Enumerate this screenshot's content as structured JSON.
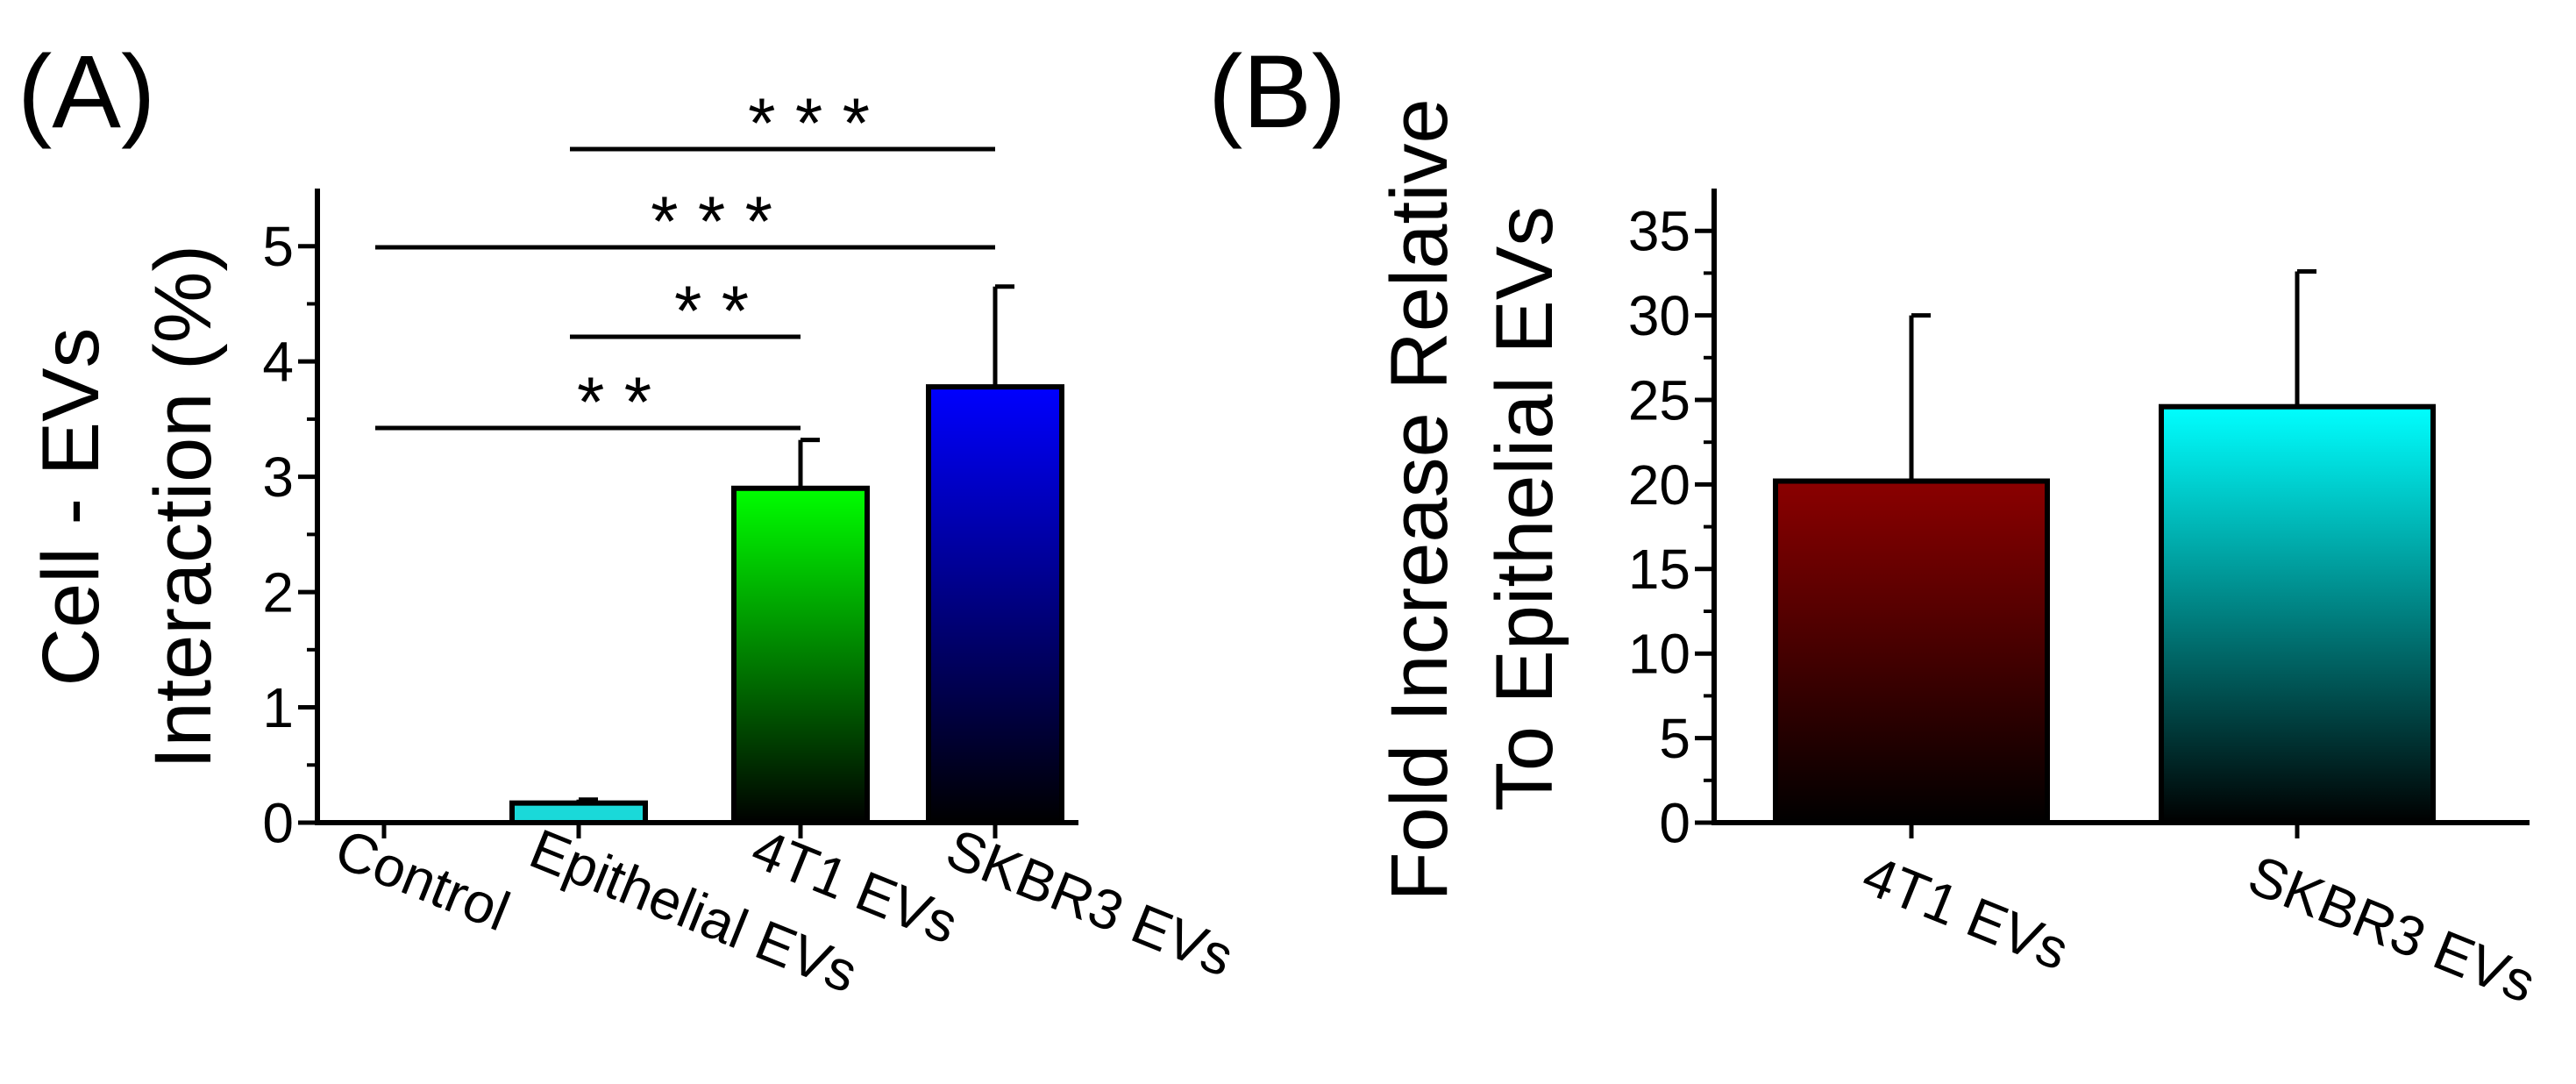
{
  "chart_data": [
    {
      "panel_label": "(A)",
      "type": "bar",
      "title": "",
      "ylabel_lines": [
        "Cell - EVs",
        "Interaction (%)"
      ],
      "xlabel": "",
      "ylim": [
        0,
        5.5
      ],
      "yticks": [
        0,
        1,
        2,
        3,
        4,
        5
      ],
      "ytick_labels": [
        "0",
        "1",
        "2",
        "3",
        "4",
        "5"
      ],
      "categories": [
        "Control",
        "Epithelial EVs",
        "4T1 EVs",
        "SKBR3 EVs"
      ],
      "values": [
        0,
        0.17,
        2.9,
        3.78
      ],
      "errors": [
        0,
        0.03,
        0.42,
        0.87
      ],
      "bar_gradients": [
        {
          "top": "#00ffff",
          "bottom": "#00ffff"
        },
        {
          "top": "#1ad9d9",
          "bottom": "#1ad9d9"
        },
        {
          "top": "#00ff00",
          "bottom": "#000000"
        },
        {
          "top": "#0000ff",
          "bottom": "#000000"
        }
      ],
      "significance": [
        {
          "from": 0,
          "to": 2,
          "label": "**"
        },
        {
          "from": 1,
          "to": 2,
          "label": "**"
        },
        {
          "from": 0,
          "to": 3,
          "label": "***"
        },
        {
          "from": 1,
          "to": 3,
          "label": "***"
        }
      ]
    },
    {
      "panel_label": "(B)",
      "type": "bar",
      "title": "",
      "ylabel_lines": [
        "Fold Increase Relative",
        "To Epithelial EVs"
      ],
      "xlabel": "",
      "ylim": [
        0,
        37.5
      ],
      "yticks": [
        0,
        5,
        10,
        15,
        20,
        25,
        30,
        35
      ],
      "ytick_labels": [
        "0",
        "5",
        "10",
        "15",
        "20",
        "25",
        "30",
        "35"
      ],
      "categories": [
        "4T1 EVs",
        "SKBR3 EVs"
      ],
      "values": [
        20.2,
        24.6
      ],
      "errors": [
        9.8,
        8.0
      ],
      "bar_gradients": [
        {
          "top": "#8b0000",
          "bottom": "#000000"
        },
        {
          "top": "#00ffff",
          "bottom": "#000000"
        }
      ],
      "significance": []
    }
  ]
}
